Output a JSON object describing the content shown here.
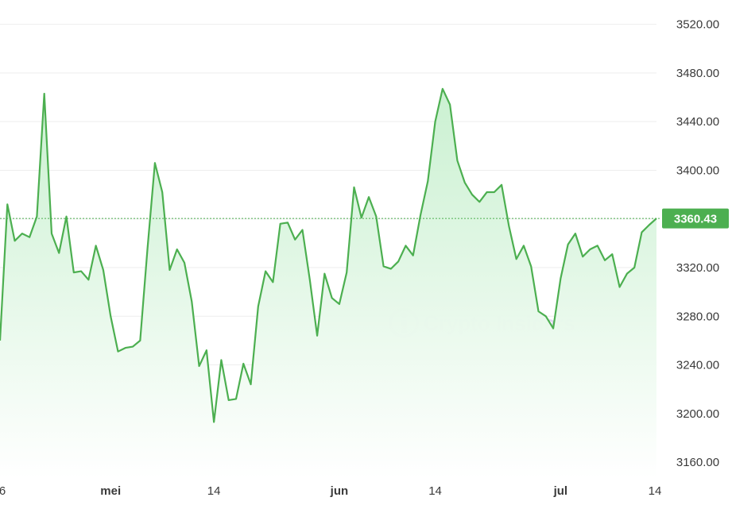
{
  "chart_data": {
    "type": "area",
    "title": "",
    "xlabel": "",
    "ylabel": "",
    "ylim": [
      3147,
      3540
    ],
    "yticks": [
      "3520.00",
      "3480.00",
      "3440.00",
      "3400.00",
      "3360.00",
      "3320.00",
      "3280.00",
      "3240.00",
      "3200.00",
      "3160.00"
    ],
    "ytick_values": [
      3520,
      3480,
      3440,
      3400,
      3360,
      3320,
      3280,
      3240,
      3200,
      3160
    ],
    "xticks": [
      {
        "label": "6",
        "bold": false,
        "index": 0
      },
      {
        "label": "mei",
        "bold": true,
        "index": 15
      },
      {
        "label": "14",
        "bold": false,
        "index": 29
      },
      {
        "label": "jun",
        "bold": true,
        "index": 46
      },
      {
        "label": "14",
        "bold": false,
        "index": 59
      },
      {
        "label": "jul",
        "bold": true,
        "index": 76
      },
      {
        "label": "14",
        "bold": false,
        "index": 89
      }
    ],
    "current_value": 3360.43,
    "current_label": "3360.43",
    "grid": true,
    "colors": {
      "line": "#4caf50",
      "fill_top": "#c8f0cf",
      "fill_bottom": "#ffffff",
      "label_bg": "#4caf50",
      "label_text": "#ffffff",
      "ref_line": "#4caf50",
      "grid": "#eeeeee"
    },
    "series": [
      {
        "values": [
          3260,
          3372,
          3342,
          3348,
          3345,
          3362,
          3463,
          3348,
          3332,
          3362,
          3316,
          3317,
          3310,
          3338,
          3318,
          3280,
          3251,
          3254,
          3255,
          3260,
          3336,
          3406,
          3382,
          3318,
          3335,
          3324,
          3292,
          3239,
          3252,
          3193,
          3244,
          3211,
          3212,
          3241,
          3224,
          3288,
          3317,
          3308,
          3356,
          3357,
          3343,
          3351,
          3310,
          3264,
          3315,
          3295,
          3290,
          3316,
          3386,
          3361,
          3378,
          3362,
          3321,
          3319,
          3325,
          3338,
          3330,
          3363,
          3391,
          3440,
          3467,
          3454,
          3408,
          3390,
          3380,
          3374,
          3382,
          3382,
          3388,
          3354,
          3327,
          3338,
          3321,
          3284,
          3280,
          3270,
          3311,
          3339,
          3348,
          3329,
          3335,
          3338,
          3326,
          3331,
          3304,
          3315,
          3320,
          3349,
          3355,
          3360.43
        ]
      }
    ],
    "watermark": "Crypto Insiders"
  }
}
